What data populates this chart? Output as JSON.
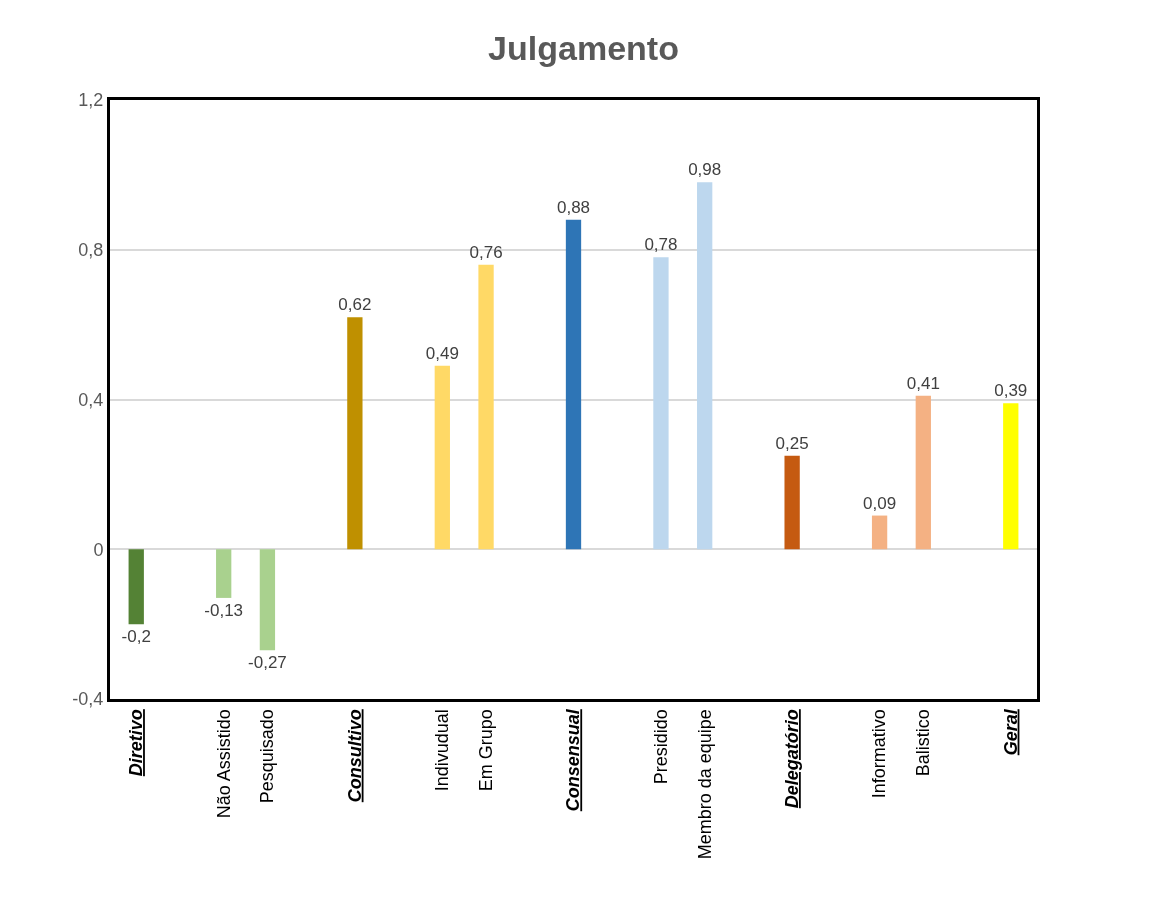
{
  "chart_data": {
    "type": "bar",
    "title": "Julgamento",
    "categories": [
      "Diretivo",
      null,
      "Não Assistido",
      "Pesquisado",
      null,
      "Consultivo",
      null,
      "Indivudual",
      "Em Grupo",
      null,
      "Consensual",
      null,
      "Presidido",
      "Membro da equipe",
      null,
      "Delegatório",
      null,
      "Informativo",
      "Balistico",
      null,
      "Geral"
    ],
    "values": [
      -0.2,
      null,
      -0.13,
      -0.27,
      null,
      0.62,
      null,
      0.49,
      0.76,
      null,
      0.88,
      null,
      0.78,
      0.98,
      null,
      0.25,
      null,
      0.09,
      0.41,
      null,
      0.39
    ],
    "colors": [
      "#548235",
      "#ffffff",
      "#a9d18e",
      "#a9d18e",
      "#ffffff",
      "#bf9000",
      "#ffffff",
      "#ffd966",
      "#ffd966",
      "#ffffff",
      "#2e75b6",
      "#ffffff",
      "#bdd7ee",
      "#bdd7ee",
      "#ffffff",
      "#c55a11",
      "#ffffff",
      "#f4b183",
      "#f4b183",
      "#ffffff",
      "#ffff00"
    ],
    "value_labels": [
      "-0,2",
      null,
      "-0,13",
      "-0,27",
      null,
      "0,62",
      null,
      "0,49",
      "0,76",
      null,
      "0,88",
      null,
      "0,78",
      "0,98",
      null,
      "0,25",
      null,
      "0,09",
      "0,41",
      null,
      "0,39"
    ],
    "ylim": [
      -0.4,
      1.2
    ],
    "yticks": [
      {
        "value": -0.4,
        "label": "-0,4"
      },
      0,
      {
        "value": 0.4,
        "label": "0,4"
      },
      {
        "value": 0.8,
        "label": "0,8"
      },
      {
        "value": 1.2,
        "label": "1,2"
      }
    ],
    "grid": "y",
    "legend": false
  }
}
